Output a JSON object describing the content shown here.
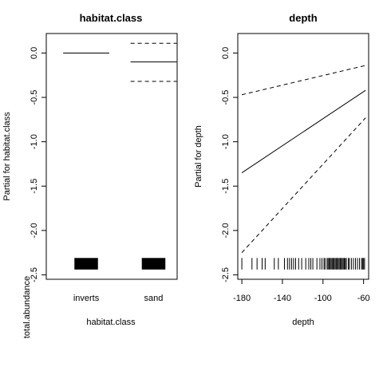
{
  "figure_margin_label": "total.abundance",
  "chart_data": [
    {
      "type": "line",
      "title": "habitat.class",
      "xlabel": "habitat.class",
      "ylabel": "Partial for habitat.class",
      "x_kind": "categorical",
      "categories": [
        "inverts",
        "sand"
      ],
      "ylim": [
        -2.55,
        0.22
      ],
      "y_ticks": [
        0.0,
        -0.5,
        -1.0,
        -1.5,
        -2.0,
        -2.5
      ],
      "y_tick_labels": [
        "0.0",
        "-0.5",
        "-1.0",
        "-1.5",
        "-2.0",
        "-2.5"
      ],
      "series": [
        {
          "style": "solid",
          "values": [
            0.0,
            -0.1
          ]
        },
        {
          "style": "dashed",
          "values": [
            null,
            0.11
          ]
        },
        {
          "style": "dashed",
          "values": [
            null,
            -0.32
          ]
        }
      ],
      "rug_band": [
        -2.44,
        -2.31
      ]
    },
    {
      "type": "line",
      "title": "depth",
      "xlabel": "depth",
      "ylabel": "Partial for depth",
      "x_kind": "numeric",
      "xlim": [
        -184,
        -55
      ],
      "x_ticks": [
        -180,
        -140,
        -100,
        -60
      ],
      "x_tick_labels": [
        "-180",
        "-140",
        "-100",
        "-60"
      ],
      "ylim": [
        -2.55,
        0.22
      ],
      "y_ticks": [
        0.0,
        -0.5,
        -1.0,
        -1.5,
        -2.0,
        -2.5
      ],
      "y_tick_labels": [
        "0.0",
        "-0.5",
        "-1.0",
        "-1.5",
        "-2.0",
        "-2.5"
      ],
      "series": [
        {
          "style": "solid",
          "x": [
            -180,
            -58
          ],
          "y": [
            -1.35,
            -0.42
          ]
        },
        {
          "style": "dashed",
          "x": [
            -180,
            -58
          ],
          "y": [
            -0.47,
            -0.14
          ]
        },
        {
          "style": "dashed",
          "x": [
            -180,
            -58
          ],
          "y": [
            -2.25,
            -0.73
          ]
        }
      ],
      "rug": [
        -180,
        -170,
        -165,
        -160,
        -157,
        -148,
        -144,
        -138,
        -135,
        -133,
        -131,
        -129,
        -127,
        -124,
        -121,
        -117,
        -114,
        -112,
        -110,
        -106,
        -103,
        -101,
        -99,
        -98,
        -96,
        -95,
        -94,
        -93,
        -92,
        -91,
        -90,
        -89,
        -88,
        -87,
        -86,
        -85,
        -84,
        -83,
        -82,
        -81,
        -80,
        -79,
        -78,
        -77,
        -75,
        -74,
        -72,
        -70,
        -68,
        -66,
        -64,
        -62,
        -61,
        -60,
        -59
      ],
      "rug_band": [
        -2.44,
        -2.31
      ]
    }
  ]
}
